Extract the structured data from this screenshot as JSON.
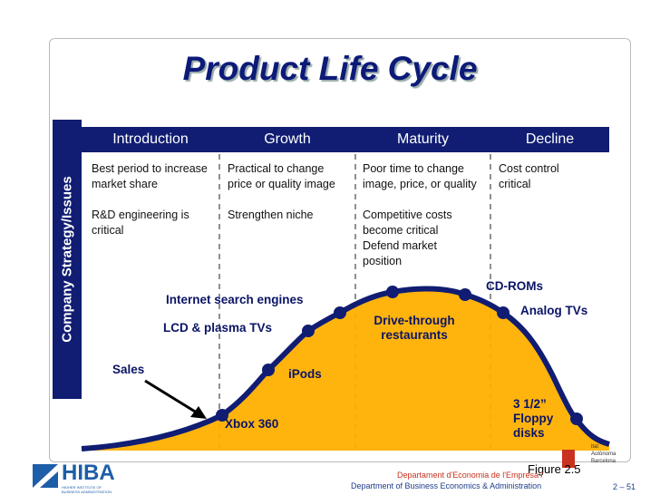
{
  "title": "Product Life Cycle",
  "side_label": "Company Strategy/Issues",
  "stages": [
    {
      "name": "Introduction",
      "notes": [
        "Best period to increase market share",
        "R&D engineering is critical"
      ]
    },
    {
      "name": "Growth",
      "notes": [
        "Practical to change price or quality image",
        "Strengthen niche"
      ]
    },
    {
      "name": "Maturity",
      "notes": [
        "Poor time to change image, price, or quality",
        "Competitive costs become critical",
        "Defend market position"
      ]
    },
    {
      "name": "Decline",
      "notes": [
        "Cost control critical"
      ]
    }
  ],
  "curve_labels": [
    "Sales",
    "Xbox 360",
    "iPods",
    "LCD & plasma TVs",
    "Internet search engines",
    "Drive-through restaurants",
    "CD-ROMs",
    "Analog TVs",
    "3 1/2” Floppy disks"
  ],
  "figure": "Figure 2.5",
  "footer": {
    "logo": "HIBA",
    "logo_sub": "HIGHER INSTITUTE OF BUSINESS ADMINISTRATION",
    "dept_ca": "Departament d'Economia de l'Empresa /",
    "dept_en": "Department of Business Economics & Administration",
    "page": "2 – 51",
    "univ": [
      "itat",
      "Autònoma",
      "Barcelona"
    ]
  }
}
